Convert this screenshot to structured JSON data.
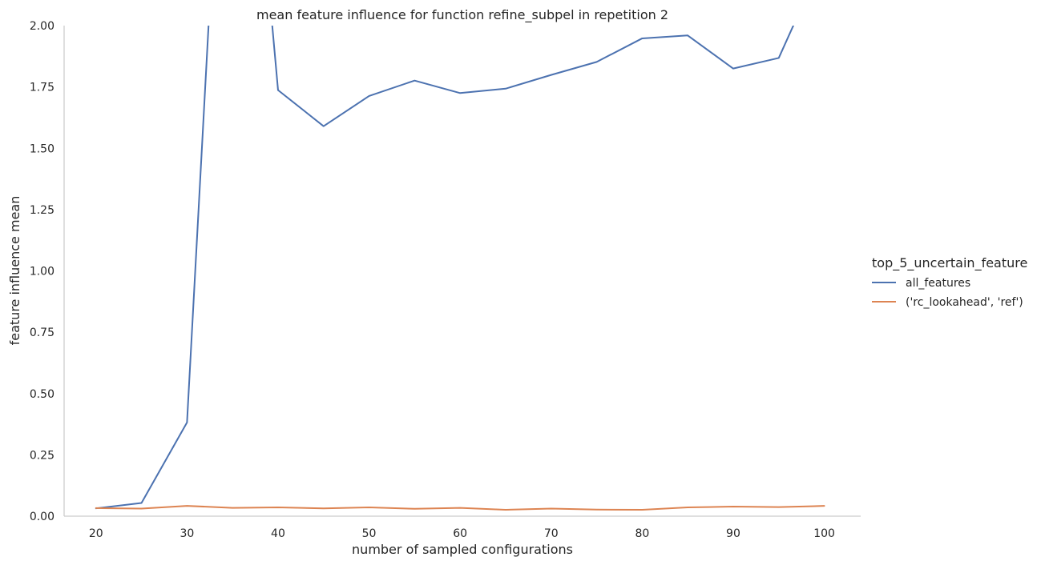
{
  "chart_data": {
    "type": "line",
    "title": "mean feature influence for function refine_subpel in repetition 2",
    "xlabel": "number of sampled configurations",
    "ylabel": "feature influence mean",
    "xlim": [
      16.5,
      104
    ],
    "ylim": [
      0,
      2
    ],
    "xticks": [
      "20",
      "30",
      "40",
      "50",
      "60",
      "70",
      "80",
      "90",
      "100"
    ],
    "yticks": [
      "0.00",
      "0.25",
      "0.50",
      "0.75",
      "1.00",
      "1.25",
      "1.50",
      "1.75",
      "2.00"
    ],
    "grid": false,
    "legend_title": "top_5_uncertain_feature",
    "legend_position": "right",
    "x": [
      20,
      25,
      30,
      35,
      40,
      45,
      50,
      55,
      60,
      65,
      70,
      75,
      80,
      85,
      90,
      95,
      100
    ],
    "series": [
      {
        "name": "all_features",
        "color": "#4c72b0",
        "values": [
          0.032,
          0.054,
          0.382,
          3.8,
          1.737,
          1.59,
          1.713,
          1.776,
          1.725,
          1.743,
          1.799,
          1.852,
          1.948,
          1.96,
          1.825,
          1.868,
          2.28
        ]
      },
      {
        "name": "('rc_lookahead', 'ref')",
        "color": "#dd8452",
        "values": [
          0.033,
          0.031,
          0.042,
          0.034,
          0.036,
          0.032,
          0.036,
          0.03,
          0.034,
          0.026,
          0.031,
          0.027,
          0.026,
          0.036,
          0.039,
          0.037,
          0.042
        ]
      }
    ]
  }
}
